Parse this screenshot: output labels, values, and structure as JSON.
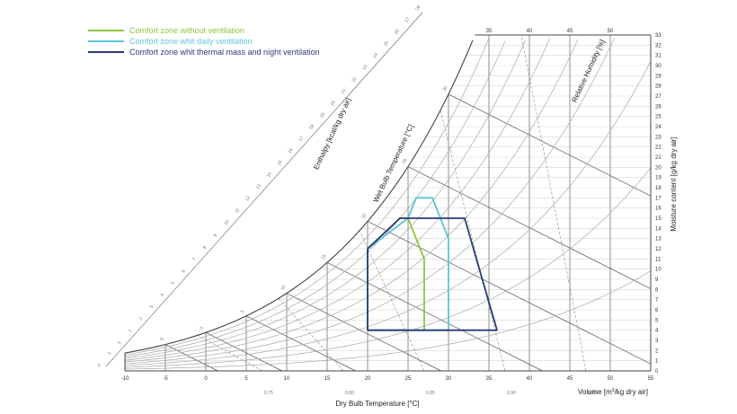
{
  "chart_data": {
    "type": "line",
    "title": "",
    "xlabel": "Dry Bulb Temperature [°C]",
    "ylabel": "Moisture content [g/kg dry air]",
    "enthalpy_label": "Enthalpy [kcal/kg dry air]",
    "wetbulb_label": "Wet Bulb Temperature [°C]",
    "rh_label": "Relative Humidity [%]",
    "volume_label_prefix": "Volume  [m",
    "volume_label_sup": "3",
    "volume_label_suffix": "/kg dry air]",
    "xlim": [
      -10,
      55
    ],
    "ylim": [
      0,
      33
    ],
    "x_ticks": [
      "-10",
      "-5",
      "0",
      "5",
      "10",
      "15",
      "20",
      "25",
      "30",
      "35",
      "40",
      "45",
      "50",
      "55"
    ],
    "top_ticks": [
      "35",
      "40",
      "45",
      "50"
    ],
    "y_ticks": [
      "0",
      "1",
      "2",
      "3",
      "4",
      "5",
      "6",
      "7",
      "8",
      "9",
      "10",
      "11",
      "12",
      "13",
      "14",
      "15",
      "16",
      "17",
      "18",
      "19",
      "20",
      "21",
      "22",
      "23",
      "24",
      "25",
      "26",
      "27",
      "28",
      "29",
      "30",
      "31",
      "32",
      "33"
    ],
    "volume_ticks": [
      "0.75",
      "0.80",
      "0.85",
      "0.90",
      "0.95"
    ],
    "enthalpy_ticks": [
      "-2",
      "-1",
      "0",
      "1",
      "2",
      "3",
      "4",
      "5",
      "6",
      "7",
      "8",
      "9",
      "10",
      "11",
      "12",
      "13",
      "14",
      "15",
      "16",
      "17",
      "18",
      "19",
      "20",
      "21",
      "22",
      "23",
      "24",
      "25",
      "26",
      "27",
      "28"
    ],
    "wetbulb_ticks": [
      "-5",
      "0",
      "5",
      "10",
      "15",
      "20",
      "25",
      "30"
    ],
    "rh_curves": [
      10,
      20,
      30,
      40,
      50,
      60,
      70,
      80,
      90,
      100
    ],
    "series": [
      {
        "name": "Comfort zone without ventilation",
        "color": "#8dc63f",
        "points": [
          [
            20,
            4
          ],
          [
            27,
            4
          ],
          [
            27,
            11
          ],
          [
            26,
            13
          ],
          [
            25,
            15
          ],
          [
            24,
            15
          ],
          [
            20,
            12
          ],
          [
            20,
            4
          ]
        ]
      },
      {
        "name": "Comfort zone whit daily ventilation",
        "color": "#5bc5dc",
        "points": [
          [
            20,
            4
          ],
          [
            30,
            4
          ],
          [
            30,
            13
          ],
          [
            29,
            15
          ],
          [
            28,
            17
          ],
          [
            26,
            17
          ],
          [
            25,
            15
          ],
          [
            20,
            12
          ],
          [
            20,
            4
          ]
        ]
      },
      {
        "name": "Comfort zone whit thermal mass and night ventilation",
        "color": "#2b3a7a",
        "points": [
          [
            20,
            4
          ],
          [
            36,
            4
          ],
          [
            32,
            15
          ],
          [
            24,
            15
          ],
          [
            20,
            12
          ],
          [
            20,
            4
          ]
        ]
      }
    ]
  }
}
